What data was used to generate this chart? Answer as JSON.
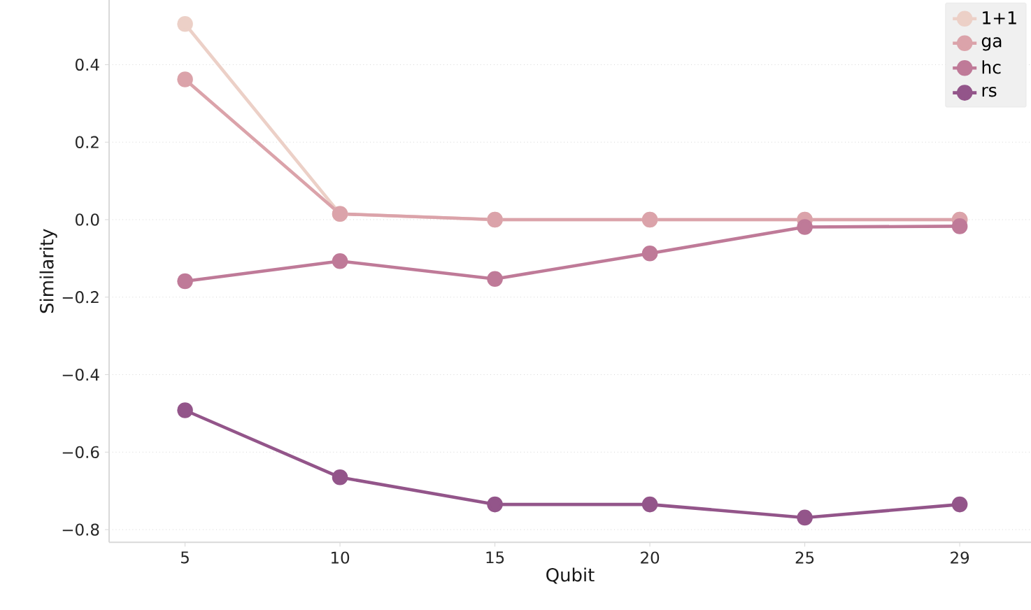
{
  "chart_data": {
    "type": "line",
    "xlabel": "Qubit",
    "ylabel": "Similarity",
    "categories": [
      "5",
      "10",
      "15",
      "20",
      "25",
      "29"
    ],
    "series": [
      {
        "name": "1+1",
        "color": "#ecd0c7",
        "values": [
          0.505,
          0.015,
          0.0,
          0.0,
          0.0,
          0.0
        ]
      },
      {
        "name": "ga",
        "color": "#dba3aa",
        "values": [
          0.362,
          0.015,
          0.0,
          0.0,
          0.0,
          0.0
        ]
      },
      {
        "name": "hc",
        "color": "#bf7a98",
        "values": [
          -0.159,
          -0.107,
          -0.153,
          -0.087,
          -0.019,
          -0.017
        ]
      },
      {
        "name": "rs",
        "color": "#93558a",
        "values": [
          -0.492,
          -0.665,
          -0.735,
          -0.735,
          -0.769,
          -0.735
        ]
      }
    ],
    "ylim": [
      -0.833,
      0.567
    ],
    "yticks": [
      {
        "value": -0.8,
        "label": "−0.8"
      },
      {
        "value": -0.6,
        "label": "−0.6"
      },
      {
        "value": -0.4,
        "label": "−0.4"
      },
      {
        "value": -0.2,
        "label": "−0.2"
      },
      {
        "value": 0.0,
        "label": "0.0"
      },
      {
        "value": 0.2,
        "label": "0.2"
      },
      {
        "value": 0.4,
        "label": "0.4"
      }
    ],
    "grid": "y",
    "legend": "top right",
    "marker": "circle",
    "line_style": "solid"
  }
}
